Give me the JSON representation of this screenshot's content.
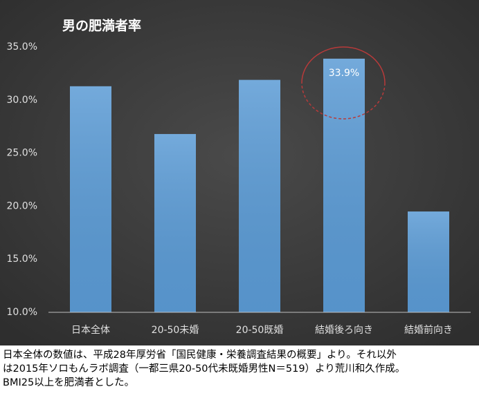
{
  "chart_data": {
    "type": "bar",
    "title": "男の肥満者率",
    "categories": [
      "日本全体",
      "20-50未婚",
      "20-50既婚",
      "結婚後ろ向き",
      "結婚前向き"
    ],
    "values": [
      31.3,
      26.8,
      31.9,
      33.9,
      19.5
    ],
    "value_labels": [
      null,
      null,
      null,
      "33.9%",
      null
    ],
    "color": "#5b9bd5",
    "ylim": [
      10,
      35
    ],
    "yticks": [
      {
        "value": 10,
        "label": "10.0%"
      },
      {
        "value": 15,
        "label": "15.0%"
      },
      {
        "value": 20,
        "label": "20.0%"
      },
      {
        "value": 25,
        "label": "25.0%"
      },
      {
        "value": 30,
        "label": "30.0%"
      },
      {
        "value": 35,
        "label": "35.0%"
      }
    ],
    "grid": false
  },
  "caption": [
    "日本全体の数値は、平成28年厚労省「国民健康・栄養調査結果の概要」より。それ以外",
    "は2015年ソロもんラボ調査（一都三県20-50代未既婚男性N＝519）より荒川和久作成。",
    "BMI25以上を肥満者とした。"
  ]
}
